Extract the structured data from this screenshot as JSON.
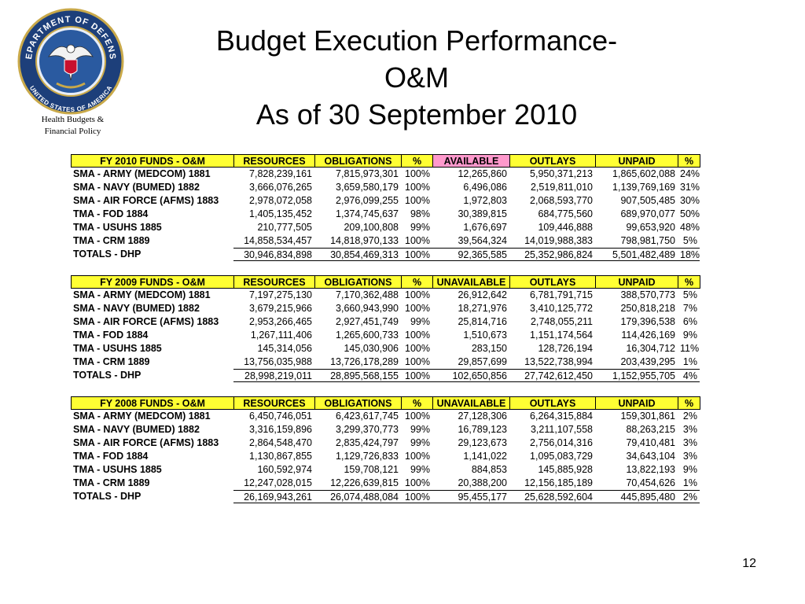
{
  "logo": {
    "ring_top": "DEPARTMENT OF DEFENSE",
    "ring_bottom": "UNITED STATES OF AMERICA",
    "caption": [
      "Health Budgets  &",
      "Financial Policy"
    ]
  },
  "title": [
    "Budget Execution Performance-",
    "O&M",
    "As of 30 September 2010"
  ],
  "tables": [
    {
      "header": [
        "FY 2010 FUNDS - O&M",
        "RESOURCES",
        "OBLIGATIONS",
        "%",
        "AVAILABLE",
        "OUTLAYS",
        "UNPAID",
        "%"
      ],
      "rows": [
        [
          "SMA - ARMY (MEDCOM) 1881",
          "7,828,239,161",
          "7,815,973,301",
          "100%",
          "12,265,860",
          "5,950,371,213",
          "1,865,602,088",
          "24%"
        ],
        [
          "SMA - NAVY (BUMED) 1882",
          "3,666,076,265",
          "3,659,580,179",
          "100%",
          "6,496,086",
          "2,519,811,010",
          "1,139,769,169",
          "31%"
        ],
        [
          "SMA - AIR FORCE (AFMS) 1883",
          "2,978,072,058",
          "2,976,099,255",
          "100%",
          "1,972,803",
          "2,068,593,770",
          "907,505,485",
          "30%"
        ],
        [
          "TMA - FOD 1884",
          "1,405,135,452",
          "1,374,745,637",
          "98%",
          "30,389,815",
          "684,775,560",
          "689,970,077",
          "50%"
        ],
        [
          "TMA - USUHS 1885",
          "210,777,505",
          "209,100,808",
          "99%",
          "1,676,697",
          "109,446,888",
          "99,653,920",
          "48%"
        ],
        [
          "TMA - CRM 1889",
          "14,858,534,457",
          "14,818,970,133",
          "100%",
          "39,564,324",
          "14,019,988,383",
          "798,981,750",
          "5%"
        ],
        [
          "TOTALS - DHP",
          "30,946,834,898",
          "30,854,469,313",
          "100%",
          "92,365,585",
          "25,352,986,824",
          "5,501,482,489",
          "18%"
        ]
      ]
    },
    {
      "header": [
        "FY 2009 FUNDS - O&M",
        "RESOURCES",
        "OBLIGATIONS",
        "%",
        "UNAVAILABLE",
        "OUTLAYS",
        "UNPAID",
        "%"
      ],
      "rows": [
        [
          "SMA - ARMY (MEDCOM) 1881",
          "7,197,275,130",
          "7,170,362,488",
          "100%",
          "26,912,642",
          "6,781,791,715",
          "388,570,773",
          "5%"
        ],
        [
          "SMA - NAVY (BUMED) 1882",
          "3,679,215,966",
          "3,660,943,990",
          "100%",
          "18,271,976",
          "3,410,125,772",
          "250,818,218",
          "7%"
        ],
        [
          "SMA - AIR FORCE (AFMS) 1883",
          "2,953,266,465",
          "2,927,451,749",
          "99%",
          "25,814,716",
          "2,748,055,211",
          "179,396,538",
          "6%"
        ],
        [
          "TMA - FOD 1884",
          "1,267,111,406",
          "1,265,600,733",
          "100%",
          "1,510,673",
          "1,151,174,564",
          "114,426,169",
          "9%"
        ],
        [
          "TMA - USUHS 1885",
          "145,314,056",
          "145,030,906",
          "100%",
          "283,150",
          "128,726,194",
          "16,304,712",
          "11%"
        ],
        [
          "TMA - CRM 1889",
          "13,756,035,988",
          "13,726,178,289",
          "100%",
          "29,857,699",
          "13,522,738,994",
          "203,439,295",
          "1%"
        ],
        [
          "TOTALS - DHP",
          "28,998,219,011",
          "28,895,568,155",
          "100%",
          "102,650,856",
          "27,742,612,450",
          "1,152,955,705",
          "4%"
        ]
      ]
    },
    {
      "header": [
        "FY 2008 FUNDS - O&M",
        "RESOURCES",
        "OBLIGATIONS",
        "%",
        "UNAVAILABLE",
        "OUTLAYS",
        "UNPAID",
        "%"
      ],
      "rows": [
        [
          "SMA - ARMY (MEDCOM) 1881",
          "6,450,746,051",
          "6,423,617,745",
          "100%",
          "27,128,306",
          "6,264,315,884",
          "159,301,861",
          "2%"
        ],
        [
          "SMA - NAVY (BUMED) 1882",
          "3,316,159,896",
          "3,299,370,773",
          "99%",
          "16,789,123",
          "3,211,107,558",
          "88,263,215",
          "3%"
        ],
        [
          "SMA - AIR FORCE (AFMS) 1883",
          "2,864,548,470",
          "2,835,424,797",
          "99%",
          "29,123,673",
          "2,756,014,316",
          "79,410,481",
          "3%"
        ],
        [
          "TMA - FOD 1884",
          "1,130,867,855",
          "1,129,726,833",
          "100%",
          "1,141,022",
          "1,095,083,729",
          "34,643,104",
          "3%"
        ],
        [
          "TMA - USUHS 1885",
          "160,592,974",
          "159,708,121",
          "99%",
          "884,853",
          "145,885,928",
          "13,822,193",
          "9%"
        ],
        [
          "TMA - CRM 1889",
          "12,247,028,015",
          "12,226,639,815",
          "100%",
          "20,388,200",
          "12,156,185,189",
          "70,454,626",
          "1%"
        ],
        [
          "TOTALS - DHP",
          "26,169,943,261",
          "26,074,488,084",
          "100%",
          "95,455,177",
          "25,628,592,604",
          "445,895,480",
          "2%"
        ]
      ]
    }
  ],
  "page_number": "12"
}
